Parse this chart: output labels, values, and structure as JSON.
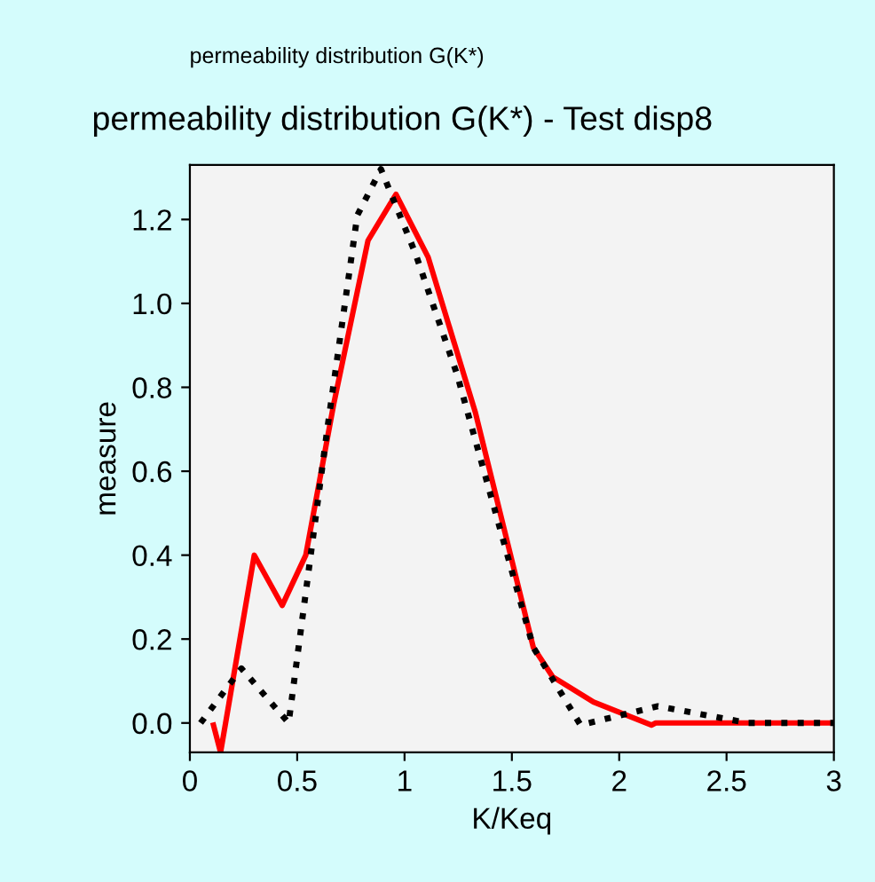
{
  "chart_data": {
    "type": "line",
    "title": "permeability distribution G(K*) - Test disp8",
    "annotations": [
      "permeability distribution G(K*)"
    ],
    "xlabel": "K/Keq",
    "ylabel": "measure",
    "xlim": [
      0,
      3
    ],
    "ylim": [
      -0.07,
      1.33
    ],
    "xticks": [
      0,
      0.5,
      1,
      1.5,
      2,
      2.5,
      3
    ],
    "yticks": [
      {
        "value": 0,
        "label": "0.0"
      },
      {
        "value": 0.2,
        "label": "0.2"
      },
      {
        "value": 0.4,
        "label": "0.4"
      },
      {
        "value": 0.6,
        "label": "0.6"
      },
      {
        "value": 0.8,
        "label": "0.8"
      },
      {
        "value": 1.0,
        "label": "1.0"
      },
      {
        "value": 1.2,
        "label": "1.2"
      }
    ],
    "grid": false,
    "series": [
      {
        "color": "#ff0000",
        "line_style": "solid",
        "x": [
          0.11,
          0.143,
          0.3,
          0.43,
          0.54,
          0.67,
          0.83,
          0.96,
          1.11,
          1.33,
          1.6,
          1.69,
          1.88,
          2.15,
          2.17,
          3.0
        ],
        "values": [
          -0.005,
          -0.07,
          0.4,
          0.28,
          0.4,
          0.76,
          1.15,
          1.26,
          1.11,
          0.74,
          0.18,
          0.11,
          0.05,
          -0.005,
          0.0,
          0.0
        ]
      },
      {
        "color": "#000000",
        "line_style": "dotted",
        "x": [
          0.05,
          0.24,
          0.46,
          0.64,
          0.78,
          0.89,
          1.05,
          1.245,
          1.49,
          1.6,
          1.82,
          2.18,
          2.6,
          3.0
        ],
        "values": [
          0.0,
          0.13,
          0.0,
          0.7,
          1.21,
          1.32,
          1.12,
          0.83,
          0.38,
          0.18,
          -0.005,
          0.04,
          0.0,
          0.0
        ]
      }
    ]
  }
}
